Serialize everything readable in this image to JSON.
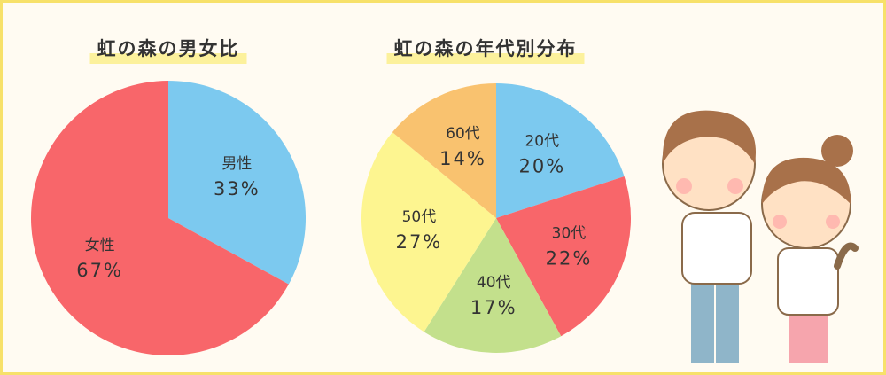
{
  "chart_data": [
    {
      "type": "pie",
      "title": "虹の森の男女比",
      "categories": [
        "男性",
        "女性"
      ],
      "values": [
        33,
        67
      ],
      "value_labels": [
        "33%",
        "67%"
      ],
      "colors": [
        "#7cc9ef",
        "#f8666a"
      ]
    },
    {
      "type": "pie",
      "title": "虹の森の年代別分布",
      "categories": [
        "20代",
        "30代",
        "40代",
        "50代",
        "60代"
      ],
      "values": [
        20,
        22,
        17,
        27,
        14
      ],
      "value_labels": [
        "20%",
        "22%",
        "17%",
        "27%",
        "14%"
      ],
      "colors": [
        "#7cc9ef",
        "#f8666a",
        "#c3e08c",
        "#fdf590",
        "#f9c26f"
      ]
    }
  ]
}
